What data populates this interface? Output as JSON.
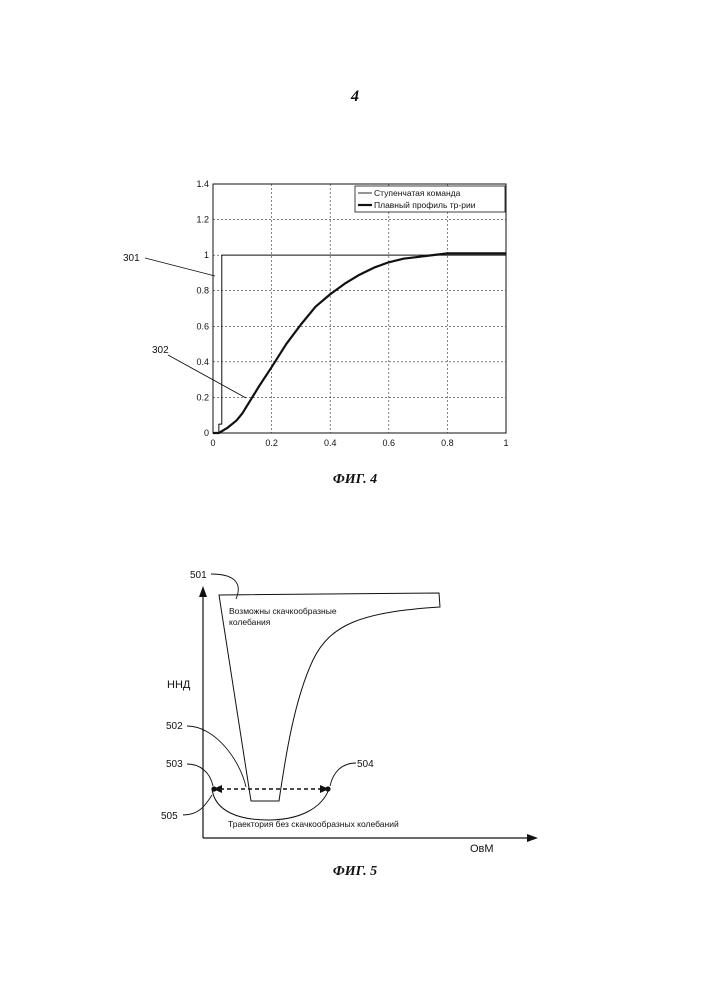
{
  "page_number": "4",
  "fig4": {
    "caption": "ФИГ. 4",
    "refs": [
      "301",
      "302"
    ],
    "chart_data": {
      "type": "line",
      "x_ticks": [
        "0",
        "0.2",
        "0.4",
        "0.6",
        "0.8",
        "1"
      ],
      "y_ticks": [
        "0",
        "0.2",
        "0.4",
        "0.6",
        "0.8",
        "1",
        "1.2",
        "1.4"
      ],
      "xlim": [
        0,
        1
      ],
      "ylim": [
        0,
        1.4
      ],
      "grid": true,
      "legend_position": "top-right",
      "series": [
        {
          "name": "Ступенчатая команда",
          "x": [
            0,
            0.02,
            0.02,
            0.03,
            0.03,
            1.0
          ],
          "y": [
            0,
            0,
            0.05,
            0.05,
            1.0,
            1.0
          ]
        },
        {
          "name": "Плавный профиль тр-рии",
          "x": [
            0,
            0.02,
            0.05,
            0.08,
            0.1,
            0.13,
            0.16,
            0.2,
            0.25,
            0.3,
            0.35,
            0.4,
            0.45,
            0.5,
            0.55,
            0.6,
            0.65,
            0.7,
            0.75,
            0.8,
            0.85,
            0.9,
            0.95,
            1.0
          ],
          "y": [
            0,
            0.0,
            0.03,
            0.07,
            0.11,
            0.19,
            0.27,
            0.37,
            0.5,
            0.61,
            0.71,
            0.78,
            0.84,
            0.89,
            0.93,
            0.96,
            0.98,
            0.99,
            1.0,
            1.01,
            1.01,
            1.01,
            1.01,
            1.01
          ]
        }
      ]
    }
  },
  "fig5": {
    "caption": "ФИГ. 5",
    "y_axis_label": "ННД",
    "x_axis_label": "ОвМ",
    "refs": [
      "501",
      "502",
      "503",
      "504",
      "505"
    ],
    "region_label_line1": "Возможны скачкообразные",
    "region_label_line2": "колебания",
    "trajectory_label": "Траектория без скачкообразных колебаний"
  },
  "colors": {
    "line": "#111111",
    "grid": "#333333"
  }
}
